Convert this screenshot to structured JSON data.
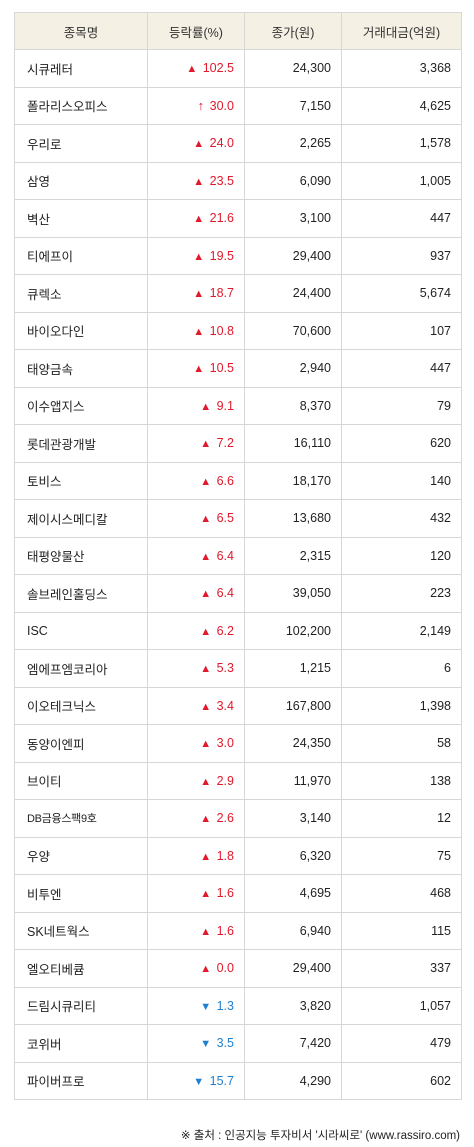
{
  "headers": [
    "종목명",
    "등락률(%)",
    "종가(원)",
    "거래대금(억원)"
  ],
  "rows": [
    {
      "name": "시큐레터",
      "dir": "up",
      "change": "102.5",
      "close": "24,300",
      "amount": "3,368"
    },
    {
      "name": "폴라리스오피스",
      "dir": "upper",
      "change": "30.0",
      "close": "7,150",
      "amount": "4,625"
    },
    {
      "name": "우리로",
      "dir": "up",
      "change": "24.0",
      "close": "2,265",
      "amount": "1,578"
    },
    {
      "name": "삼영",
      "dir": "up",
      "change": "23.5",
      "close": "6,090",
      "amount": "1,005"
    },
    {
      "name": "벽산",
      "dir": "up",
      "change": "21.6",
      "close": "3,100",
      "amount": "447"
    },
    {
      "name": "티에프이",
      "dir": "up",
      "change": "19.5",
      "close": "29,400",
      "amount": "937"
    },
    {
      "name": "큐렉소",
      "dir": "up",
      "change": "18.7",
      "close": "24,400",
      "amount": "5,674"
    },
    {
      "name": "바이오다인",
      "dir": "up",
      "change": "10.8",
      "close": "70,600",
      "amount": "107"
    },
    {
      "name": "태양금속",
      "dir": "up",
      "change": "10.5",
      "close": "2,940",
      "amount": "447"
    },
    {
      "name": "이수앱지스",
      "dir": "up",
      "change": "9.1",
      "close": "8,370",
      "amount": "79"
    },
    {
      "name": "롯데관광개발",
      "dir": "up",
      "change": "7.2",
      "close": "16,110",
      "amount": "620"
    },
    {
      "name": "토비스",
      "dir": "up",
      "change": "6.6",
      "close": "18,170",
      "amount": "140"
    },
    {
      "name": "제이시스메디칼",
      "dir": "up",
      "change": "6.5",
      "close": "13,680",
      "amount": "432"
    },
    {
      "name": "태평양물산",
      "dir": "up",
      "change": "6.4",
      "close": "2,315",
      "amount": "120"
    },
    {
      "name": "솔브레인홀딩스",
      "dir": "up",
      "change": "6.4",
      "close": "39,050",
      "amount": "223"
    },
    {
      "name": "ISC",
      "dir": "up",
      "change": "6.2",
      "close": "102,200",
      "amount": "2,149"
    },
    {
      "name": "엠에프엠코리아",
      "dir": "up",
      "change": "5.3",
      "close": "1,215",
      "amount": "6"
    },
    {
      "name": "이오테크닉스",
      "dir": "up",
      "change": "3.4",
      "close": "167,800",
      "amount": "1,398"
    },
    {
      "name": "동양이엔피",
      "dir": "up",
      "change": "3.0",
      "close": "24,350",
      "amount": "58"
    },
    {
      "name": "브이티",
      "dir": "up",
      "change": "2.9",
      "close": "11,970",
      "amount": "138"
    },
    {
      "name": "DB금융스팩9호",
      "dir": "up",
      "change": "2.6",
      "close": "3,140",
      "amount": "12",
      "small": true
    },
    {
      "name": "우양",
      "dir": "up",
      "change": "1.8",
      "close": "6,320",
      "amount": "75"
    },
    {
      "name": "비투엔",
      "dir": "up",
      "change": "1.6",
      "close": "4,695",
      "amount": "468"
    },
    {
      "name": "SK네트웍스",
      "dir": "up",
      "change": "1.6",
      "close": "6,940",
      "amount": "115"
    },
    {
      "name": "엘오티베큠",
      "dir": "up",
      "change": "0.0",
      "close": "29,400",
      "amount": "337"
    },
    {
      "name": "드림시큐리티",
      "dir": "down",
      "change": "1.3",
      "close": "3,820",
      "amount": "1,057"
    },
    {
      "name": "코위버",
      "dir": "down",
      "change": "3.5",
      "close": "7,420",
      "amount": "479"
    },
    {
      "name": "파이버프로",
      "dir": "down",
      "change": "15.7",
      "close": "4,290",
      "amount": "602"
    }
  ],
  "colors": {
    "up": "#e0192b",
    "down": "#1f7fd0",
    "header_bg": "#f4f0e4"
  },
  "source": "※ 출처 : 인공지능 투자비서 '시라씨로' (www.rassiro.com)"
}
